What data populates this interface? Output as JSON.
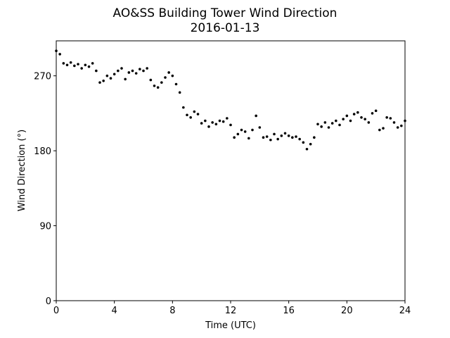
{
  "chart_data": {
    "type": "scatter",
    "title": "AO&SS Building Tower Wind Direction",
    "subtitle": "2016-01-13",
    "x_label": "Time (UTC)",
    "y_label": "Wind Direction (°)",
    "color": "#000000",
    "xlim": [
      0,
      24
    ],
    "ylim": [
      0,
      312
    ],
    "xticks": [
      0,
      4,
      8,
      12,
      16,
      20,
      24
    ],
    "yticks": [
      0,
      90,
      180,
      270
    ],
    "x": [
      0,
      0.25,
      0.5,
      0.75,
      1,
      1.25,
      1.5,
      1.75,
      2,
      2.25,
      2.5,
      2.75,
      3,
      3.25,
      3.5,
      3.75,
      4,
      4.25,
      4.5,
      4.75,
      5,
      5.25,
      5.5,
      5.75,
      6,
      6.25,
      6.5,
      6.75,
      7,
      7.25,
      7.5,
      7.75,
      8,
      8.25,
      8.5,
      8.75,
      9,
      9.25,
      9.5,
      9.75,
      10,
      10.25,
      10.5,
      10.75,
      11,
      11.25,
      11.5,
      11.75,
      12,
      12.25,
      12.5,
      12.75,
      13,
      13.25,
      13.5,
      13.75,
      14,
      14.25,
      14.5,
      14.75,
      15,
      15.25,
      15.5,
      15.75,
      16,
      16.25,
      16.5,
      16.75,
      17,
      17.25,
      17.5,
      17.75,
      18,
      18.25,
      18.5,
      18.75,
      19,
      19.25,
      19.5,
      19.75,
      20,
      20.25,
      20.5,
      20.75,
      21,
      21.25,
      21.5,
      21.75,
      22,
      22.25,
      22.5,
      22.75,
      23,
      23.25,
      23.5,
      23.75,
      24
    ],
    "values": [
      300,
      296,
      285,
      283,
      286,
      282,
      284,
      279,
      283,
      281,
      285,
      276,
      262,
      264,
      270,
      267,
      272,
      276,
      279,
      266,
      274,
      276,
      273,
      278,
      276,
      279,
      265,
      258,
      256,
      262,
      268,
      274,
      270,
      260,
      250,
      232,
      223,
      220,
      227,
      224,
      213,
      216,
      209,
      214,
      212,
      216,
      215,
      219,
      211,
      196,
      200,
      205,
      203,
      195,
      205,
      222,
      208,
      196,
      197,
      193,
      200,
      194,
      198,
      201,
      198,
      196,
      197,
      194,
      190,
      182,
      188,
      196,
      212,
      209,
      214,
      208,
      213,
      216,
      211,
      218,
      222,
      216,
      224,
      226,
      220,
      218,
      214,
      225,
      228,
      205,
      207,
      220,
      219,
      214,
      208,
      210,
      216
    ]
  }
}
